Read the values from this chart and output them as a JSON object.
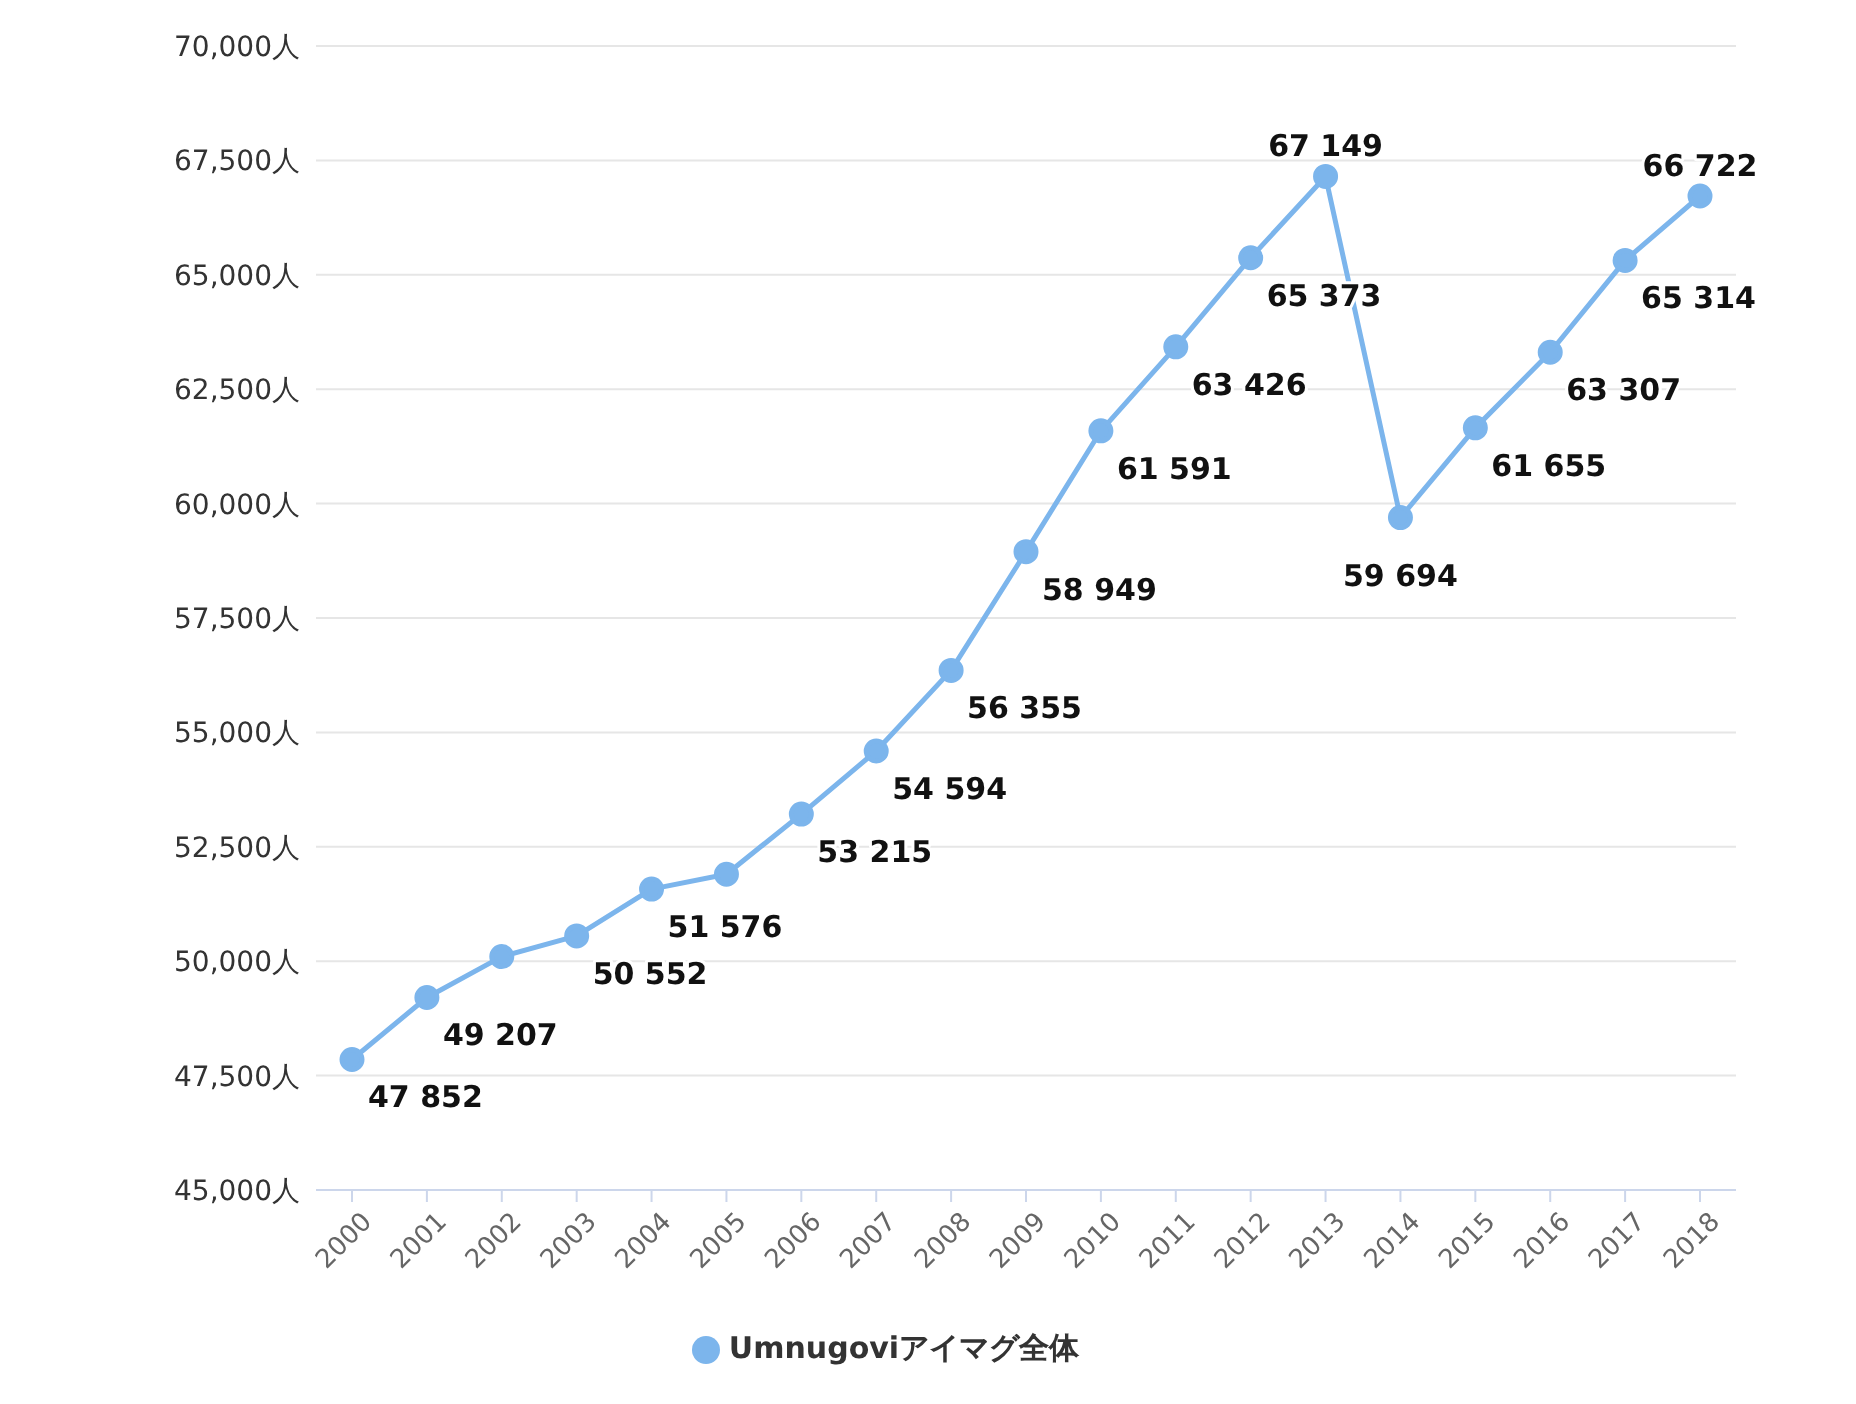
{
  "chart_data": {
    "type": "line",
    "categories": [
      "2000",
      "2001",
      "2002",
      "2003",
      "2004",
      "2005",
      "2006",
      "2007",
      "2008",
      "2009",
      "2010",
      "2011",
      "2012",
      "2013",
      "2014",
      "2015",
      "2016",
      "2017",
      "2018"
    ],
    "series": [
      {
        "name": "Umnugoviアイマグ全体",
        "color": "#7cb5ec",
        "values": [
          47852,
          49207,
          50100,
          50552,
          51576,
          51900,
          53215,
          54594,
          56355,
          58949,
          61591,
          63426,
          65373,
          67149,
          59694,
          61655,
          63307,
          65314,
          66722
        ],
        "value_labels": [
          "47 852",
          "49 207",
          null,
          "50 552",
          "51 576",
          null,
          "53 215",
          "54 594",
          "56 355",
          "58 949",
          "61 591",
          "63 426",
          "65 373",
          "67 149",
          "59 694",
          "61 655",
          "63 307",
          "65 314",
          "66 722"
        ]
      }
    ],
    "ylim": [
      45000,
      70000
    ],
    "yticks": [
      {
        "value": 45000,
        "label": "45,000人"
      },
      {
        "value": 47500,
        "label": "47,500人"
      },
      {
        "value": 50000,
        "label": "50,000人"
      },
      {
        "value": 52500,
        "label": "52,500人"
      },
      {
        "value": 55000,
        "label": "55,000人"
      },
      {
        "value": 57500,
        "label": "57,500人"
      },
      {
        "value": 60000,
        "label": "60,000人"
      },
      {
        "value": 62500,
        "label": "62,500人"
      },
      {
        "value": 65000,
        "label": "65,000人"
      },
      {
        "value": 67500,
        "label": "67,500人"
      },
      {
        "value": 70000,
        "label": "70,000人"
      }
    ],
    "grid": "y",
    "legend": "bottom",
    "marker": "circle",
    "line_style": "solid"
  }
}
